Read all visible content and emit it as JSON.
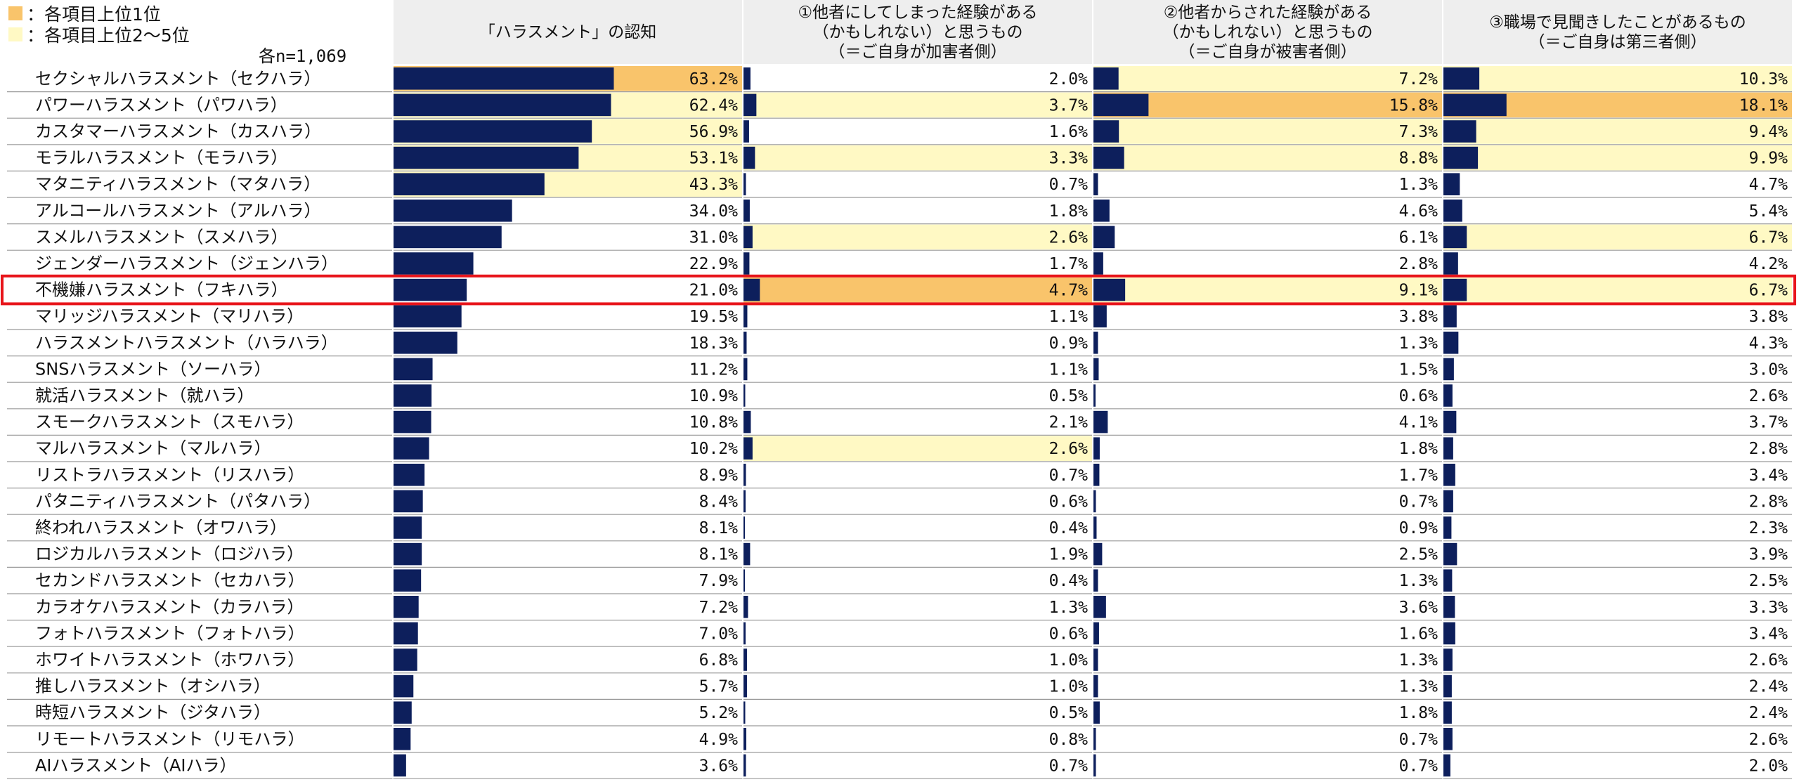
{
  "legend": {
    "top1": {
      "label": "：各項目上位1位",
      "color": "#f9c46b"
    },
    "top2_5": {
      "label": "：各項目上位2～5位",
      "color": "#fff9c4"
    }
  },
  "sample_size": "各n=1,069",
  "columns": [
    {
      "key": "awareness",
      "lines": [
        "「ハラスメント」の認知"
      ]
    },
    {
      "key": "perpetrator",
      "lines": [
        "①他者にしてしまった経験がある",
        "（かもしれない）と思うもの",
        "（＝ご自身が加害者側）"
      ]
    },
    {
      "key": "victim",
      "lines": [
        "②他者からされた経験がある",
        "（かもしれない）と思うもの",
        "（＝ご自身が被害者側）"
      ]
    },
    {
      "key": "witness",
      "lines": [
        "③職場で見聞きしたことがあるもの",
        "（＝ご自身は第三者側）"
      ]
    }
  ],
  "colors": {
    "bar": "#0d1f5c",
    "top1": "#f9c46b",
    "top2_5": "#fff9c4",
    "highlight_border": "#e8141a",
    "header_bg": "#eeeeee"
  },
  "chart_data": {
    "type": "bar",
    "orientation": "horizontal",
    "unit": "%",
    "xlim": [
      0,
      100
    ],
    "highlight_category": "不機嫌ハラスメント（フキハラ）",
    "categories": [
      "セクシャルハラスメント（セクハラ）",
      "パワーハラスメント（パワハラ）",
      "カスタマーハラスメント（カスハラ）",
      "モラルハラスメント（モラハラ）",
      "マタニティハラスメント（マタハラ）",
      "アルコールハラスメント（アルハラ）",
      "スメルハラスメント（スメハラ）",
      "ジェンダーハラスメント（ジェンハラ）",
      "不機嫌ハラスメント（フキハラ）",
      "マリッジハラスメント（マリハラ）",
      "ハラスメントハラスメント（ハラハラ）",
      "SNSハラスメント（ソーハラ）",
      "就活ハラスメント（就ハラ）",
      "スモークハラスメント（スモハラ）",
      "マルハラスメント（マルハラ）",
      "リストラハラスメント（リスハラ）",
      "パタニティハラスメント（パタハラ）",
      "終われハラスメント（オワハラ）",
      "ロジカルハラスメント（ロジハラ）",
      "セカンドハラスメント（セカハラ）",
      "カラオケハラスメント（カラハラ）",
      "フォトハラスメント（フォトハラ）",
      "ホワイトハラスメント（ホワハラ）",
      "推しハラスメント（オシハラ）",
      "時短ハラスメント（ジタハラ）",
      "リモートハラスメント（リモハラ）",
      "AIハラスメント（AIハラ）"
    ],
    "series": [
      {
        "key": "awareness",
        "values": [
          63.2,
          62.4,
          56.9,
          53.1,
          43.3,
          34.0,
          31.0,
          22.9,
          21.0,
          19.5,
          18.3,
          11.2,
          10.9,
          10.8,
          10.2,
          8.9,
          8.4,
          8.1,
          8.1,
          7.9,
          7.2,
          7.0,
          6.8,
          5.7,
          5.2,
          4.9,
          3.6
        ],
        "value_labels": [
          "63.2%",
          "62.4%",
          "56.9%",
          "53.1%",
          "43.3%",
          "34.0%",
          "31.0%",
          "22.9%",
          "21.0%",
          "19.5%",
          "18.3%",
          "11.2%",
          "10.9%",
          "10.8%",
          "10.2%",
          "8.9%",
          "8.4%",
          "8.1%",
          "8.1%",
          "7.9%",
          "7.2%",
          "7.0%",
          "6.8%",
          "5.7%",
          "5.2%",
          "4.9%",
          "3.6%"
        ],
        "rank_highlight": [
          1,
          2,
          2,
          2,
          2,
          0,
          0,
          0,
          0,
          0,
          0,
          0,
          0,
          0,
          0,
          0,
          0,
          0,
          0,
          0,
          0,
          0,
          0,
          0,
          0,
          0,
          0
        ]
      },
      {
        "key": "perpetrator",
        "values": [
          2.0,
          3.7,
          1.6,
          3.3,
          0.7,
          1.8,
          2.6,
          1.7,
          4.7,
          1.1,
          0.9,
          1.1,
          0.5,
          2.1,
          2.6,
          0.7,
          0.6,
          0.4,
          1.9,
          0.4,
          1.3,
          0.6,
          1.0,
          1.0,
          0.5,
          0.8,
          0.7
        ],
        "value_labels": [
          "2.0%",
          "3.7%",
          "1.6%",
          "3.3%",
          "0.7%",
          "1.8%",
          "2.6%",
          "1.7%",
          "4.7%",
          "1.1%",
          "0.9%",
          "1.1%",
          "0.5%",
          "2.1%",
          "2.6%",
          "0.7%",
          "0.6%",
          "0.4%",
          "1.9%",
          "0.4%",
          "1.3%",
          "0.6%",
          "1.0%",
          "1.0%",
          "0.5%",
          "0.8%",
          "0.7%"
        ],
        "rank_highlight": [
          0,
          2,
          0,
          2,
          0,
          0,
          2,
          0,
          1,
          0,
          0,
          0,
          0,
          0,
          2,
          0,
          0,
          0,
          0,
          0,
          0,
          0,
          0,
          0,
          0,
          0,
          0
        ]
      },
      {
        "key": "victim",
        "values": [
          7.2,
          15.8,
          7.3,
          8.8,
          1.3,
          4.6,
          6.1,
          2.8,
          9.1,
          3.8,
          1.3,
          1.5,
          0.6,
          4.1,
          1.8,
          1.7,
          0.7,
          0.9,
          2.5,
          1.3,
          3.6,
          1.6,
          1.3,
          1.3,
          1.8,
          0.7,
          0.7
        ],
        "value_labels": [
          "7.2%",
          "15.8%",
          "7.3%",
          "8.8%",
          "1.3%",
          "4.6%",
          "6.1%",
          "2.8%",
          "9.1%",
          "3.8%",
          "1.3%",
          "1.5%",
          "0.6%",
          "4.1%",
          "1.8%",
          "1.7%",
          "0.7%",
          "0.9%",
          "2.5%",
          "1.3%",
          "3.6%",
          "1.6%",
          "1.3%",
          "1.3%",
          "1.8%",
          "0.7%",
          "0.7%"
        ],
        "rank_highlight": [
          2,
          1,
          2,
          2,
          0,
          0,
          0,
          0,
          2,
          0,
          0,
          0,
          0,
          0,
          0,
          0,
          0,
          0,
          0,
          0,
          0,
          0,
          0,
          0,
          0,
          0,
          0
        ]
      },
      {
        "key": "witness",
        "values": [
          10.3,
          18.1,
          9.4,
          9.9,
          4.7,
          5.4,
          6.7,
          4.2,
          6.7,
          3.8,
          4.3,
          3.0,
          2.6,
          3.7,
          2.8,
          3.4,
          2.8,
          2.3,
          3.9,
          2.5,
          3.3,
          3.4,
          2.6,
          2.4,
          2.4,
          2.6,
          2.0
        ],
        "value_labels": [
          "10.3%",
          "18.1%",
          "9.4%",
          "9.9%",
          "4.7%",
          "5.4%",
          "6.7%",
          "4.2%",
          "6.7%",
          "3.8%",
          "4.3%",
          "3.0%",
          "2.6%",
          "3.7%",
          "2.8%",
          "3.4%",
          "2.8%",
          "2.3%",
          "3.9%",
          "2.5%",
          "3.3%",
          "3.4%",
          "2.6%",
          "2.4%",
          "2.4%",
          "2.6%",
          "2.0%"
        ],
        "rank_highlight": [
          2,
          1,
          2,
          2,
          0,
          0,
          2,
          0,
          2,
          0,
          0,
          0,
          0,
          0,
          0,
          0,
          0,
          0,
          0,
          0,
          0,
          0,
          0,
          0,
          0,
          0,
          0
        ]
      }
    ]
  }
}
